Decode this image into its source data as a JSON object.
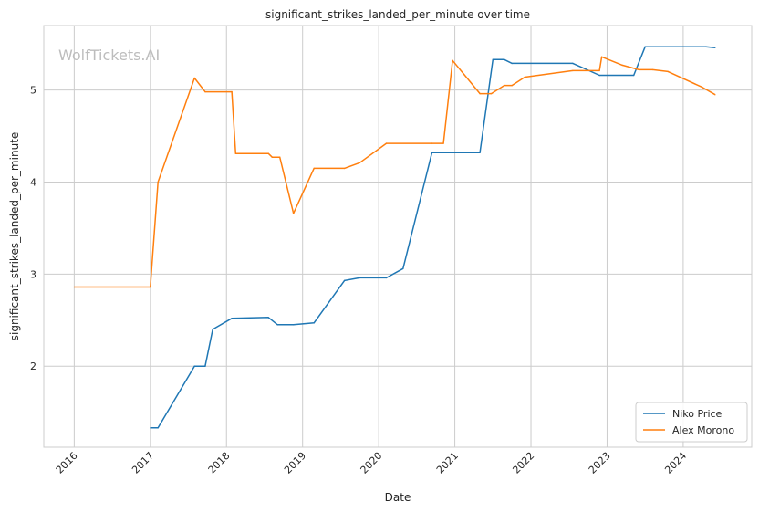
{
  "chart_data": {
    "type": "line",
    "title": "significant_strikes_landed_per_minute over time",
    "xlabel": "Date",
    "ylabel": "significant_strikes_landed_per_minute",
    "watermark": "WolfTickets.AI",
    "xlim": [
      2015.6,
      2024.9
    ],
    "ylim": [
      1.12,
      5.7
    ],
    "x_ticks": [
      {
        "value": 2016,
        "label": "2016"
      },
      {
        "value": 2017,
        "label": "2017"
      },
      {
        "value": 2018,
        "label": "2018"
      },
      {
        "value": 2019,
        "label": "2019"
      },
      {
        "value": 2020,
        "label": "2020"
      },
      {
        "value": 2021,
        "label": "2021"
      },
      {
        "value": 2022,
        "label": "2022"
      },
      {
        "value": 2023,
        "label": "2023"
      },
      {
        "value": 2024,
        "label": "2024"
      }
    ],
    "y_ticks": [
      {
        "value": 2,
        "label": "2"
      },
      {
        "value": 3,
        "label": "3"
      },
      {
        "value": 4,
        "label": "4"
      },
      {
        "value": 5,
        "label": "5"
      }
    ],
    "grid": true,
    "legend_position": "bottom-right",
    "series": [
      {
        "name": "Niko Price",
        "color": "#1f77b4",
        "points": [
          [
            2017.0,
            1.33
          ],
          [
            2017.1,
            1.33
          ],
          [
            2017.58,
            2.0
          ],
          [
            2017.72,
            2.0
          ],
          [
            2017.82,
            2.4
          ],
          [
            2018.07,
            2.52
          ],
          [
            2018.55,
            2.53
          ],
          [
            2018.67,
            2.45
          ],
          [
            2018.88,
            2.45
          ],
          [
            2019.15,
            2.47
          ],
          [
            2019.55,
            2.93
          ],
          [
            2019.75,
            2.96
          ],
          [
            2020.1,
            2.96
          ],
          [
            2020.32,
            3.06
          ],
          [
            2020.7,
            4.32
          ],
          [
            2021.33,
            4.32
          ],
          [
            2021.5,
            5.33
          ],
          [
            2021.65,
            5.33
          ],
          [
            2021.75,
            5.29
          ],
          [
            2022.55,
            5.29
          ],
          [
            2022.9,
            5.16
          ],
          [
            2023.35,
            5.16
          ],
          [
            2023.5,
            5.47
          ],
          [
            2024.3,
            5.47
          ],
          [
            2024.42,
            5.46
          ]
        ]
      },
      {
        "name": "Alex Morono",
        "color": "#ff7f0e",
        "points": [
          [
            2016.0,
            2.86
          ],
          [
            2017.0,
            2.86
          ],
          [
            2017.1,
            4.0
          ],
          [
            2017.58,
            5.13
          ],
          [
            2017.72,
            4.98
          ],
          [
            2018.07,
            4.98
          ],
          [
            2018.12,
            4.31
          ],
          [
            2018.55,
            4.31
          ],
          [
            2018.6,
            4.27
          ],
          [
            2018.7,
            4.27
          ],
          [
            2018.88,
            3.66
          ],
          [
            2019.15,
            4.15
          ],
          [
            2019.55,
            4.15
          ],
          [
            2019.75,
            4.21
          ],
          [
            2020.1,
            4.42
          ],
          [
            2020.7,
            4.42
          ],
          [
            2020.85,
            4.42
          ],
          [
            2020.97,
            5.32
          ],
          [
            2021.33,
            4.96
          ],
          [
            2021.48,
            4.96
          ],
          [
            2021.65,
            5.05
          ],
          [
            2021.75,
            5.05
          ],
          [
            2021.92,
            5.14
          ],
          [
            2022.55,
            5.21
          ],
          [
            2022.9,
            5.21
          ],
          [
            2022.93,
            5.36
          ],
          [
            2023.2,
            5.27
          ],
          [
            2023.42,
            5.22
          ],
          [
            2023.6,
            5.22
          ],
          [
            2023.8,
            5.2
          ],
          [
            2024.25,
            5.03
          ],
          [
            2024.42,
            4.95
          ]
        ]
      }
    ]
  }
}
